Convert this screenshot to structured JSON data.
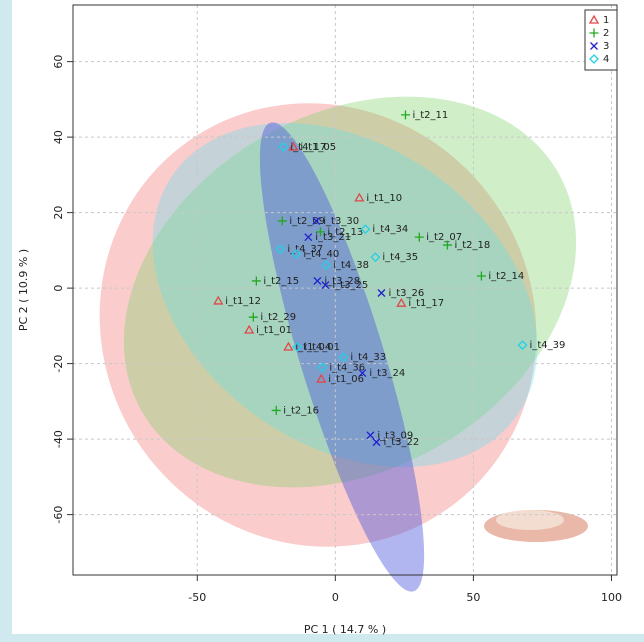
{
  "chart_data": {
    "type": "scatter",
    "x_label": "PC 1 ( 14.7 % )",
    "y_label": "PC 2 ( 10.9 % )",
    "xlim": [
      -95,
      102
    ],
    "ylim": [
      -76,
      75
    ],
    "xticks": [
      -50,
      0,
      50,
      100
    ],
    "yticks": [
      -60,
      -40,
      -20,
      0,
      20,
      40,
      60
    ],
    "grid": true,
    "legend": "top-right",
    "series": [
      {
        "name": "1",
        "color": "#e04848",
        "marker": "triangle",
        "x": [
          -15.2,
          8.7,
          23.9,
          -42.4,
          -31.2,
          -17.0,
          -5.1
        ],
        "values": [
          37.4,
          23.9,
          -4.0,
          -3.4,
          -11.1,
          -15.6,
          -24.1
        ],
        "labels": [
          "i_t1_05",
          "i_t1_10",
          "i_t1_17",
          "i_t1_12",
          "i_t1_01",
          "i_t1_04",
          "i_t1_06"
        ]
      },
      {
        "name": "2",
        "color": "#1faa1f",
        "marker": "plus",
        "x": [
          25.4,
          30.4,
          40.6,
          52.9,
          -28.6,
          -29.7,
          -21.4,
          -5.4,
          -19.2
        ],
        "values": [
          45.9,
          13.5,
          11.4,
          3.2,
          1.9,
          -7.7,
          -32.4,
          14.9,
          17.8
        ],
        "labels": [
          "i_t2_11",
          "i_t2_07",
          "i_t2_18",
          "i_t2_14",
          "i_t2_15",
          "i_t2_29",
          "i_t2_16",
          "i_t2_13",
          "i_t2_09"
        ]
      },
      {
        "name": "3",
        "color": "#2020cc",
        "marker": "cross",
        "x": [
          -6.9,
          -9.8,
          -6.5,
          -3.6,
          16.7,
          9.8,
          12.7,
          14.9
        ],
        "values": [
          17.8,
          13.5,
          1.9,
          0.8,
          -1.3,
          -22.5,
          -39.0,
          -40.8
        ],
        "labels": [
          "i_t3_30",
          "i_t3_21",
          "i_t3_28",
          "i_t3_25",
          "i_t3_26",
          "i_t3_24",
          "i_t3_09",
          "i_t3_22"
        ]
      },
      {
        "name": "4",
        "color": "#22d0e6",
        "marker": "diamond",
        "x": [
          -18.8,
          10.9,
          -19.9,
          -14.1,
          -3.3,
          14.5,
          67.8,
          2.9,
          -4.7,
          -13.8
        ],
        "values": [
          37.4,
          15.6,
          10.3,
          9.0,
          6.1,
          8.2,
          -15.1,
          -18.3,
          -21.0,
          -15.6
        ],
        "labels": [
          "i_t4_17",
          "i_t4_34",
          "i_t4_37",
          "i_t4_40",
          "i_t4_38",
          "i_t4_35",
          "i_t4_39",
          "i_t4_33",
          "i_t4_36",
          "i_t4_01"
        ]
      }
    ]
  }
}
